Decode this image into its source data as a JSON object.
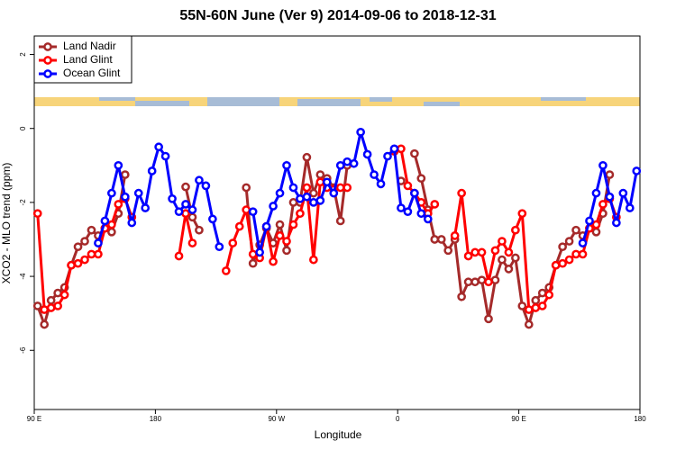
{
  "chart_data": {
    "type": "line",
    "title": "55N-60N June (Ver 9)   2014-09-06 to 2018-12-31",
    "x_label": "Longitude",
    "y_label": "XCO2 - MLO trend (ppm)",
    "xlim": [
      90,
      540
    ],
    "xticks": [
      {
        "value": 90,
        "label": "90 E"
      },
      {
        "value": 180,
        "label": "180"
      },
      {
        "value": 270,
        "label": "90 W"
      },
      {
        "value": 360,
        "label": "0"
      },
      {
        "value": 450,
        "label": "90 E"
      },
      {
        "value": 540,
        "label": "180"
      }
    ],
    "ylim": [
      -7.6,
      2.5
    ],
    "yticks": [
      -6,
      -4,
      -2,
      0,
      2
    ],
    "legend": "top-left",
    "series": [
      {
        "name": "Land Nadir",
        "color": "#a52a2a",
        "x": [
          92.5,
          97.5,
          102.5,
          107.5,
          112.5,
          117.5,
          122.5,
          127.5,
          132.5,
          137.5,
          142.5,
          147.5,
          152.5,
          157.5,
          162.5,
          202.5,
          207.5,
          212.5,
          217.5,
          247.5,
          252.5,
          257.5,
          262.5,
          267.5,
          272.5,
          277.5,
          282.5,
          287.5,
          292.5,
          297.5,
          302.5,
          307.5,
          312.5,
          317.5,
          322.5,
          327.5,
          362.5,
          367.5,
          372.5,
          377.5,
          382.5,
          387.5,
          392.5,
          397.5,
          402.5,
          407.5,
          412.5,
          417.5,
          422.5,
          427.5,
          432.5,
          437.5,
          442.5,
          447.5,
          452.5,
          457.5,
          462.5,
          467.5,
          472.5,
          477.5,
          482.5,
          487.5,
          492.5,
          497.5,
          502.5,
          507.5,
          512.5,
          517.5
        ],
        "values": [
          -4.8,
          -5.3,
          -4.65,
          -4.45,
          -4.3,
          -3.7,
          -3.2,
          -3.05,
          -2.75,
          -2.9,
          -2.7,
          -2.8,
          -2.3,
          -1.25,
          null,
          -1.58,
          -2.4,
          -2.75,
          null,
          -1.6,
          -3.65,
          -3.15,
          -2.7,
          -3.1,
          -2.6,
          -3.3,
          -2.0,
          -2.0,
          -0.78,
          -1.75,
          -1.25,
          -1.35,
          -1.6,
          -2.5,
          -1.0,
          null,
          -1.42,
          null,
          -0.68,
          -1.35,
          -2.2,
          -3.0,
          -3.0,
          -3.3,
          -3.0,
          -4.55,
          -4.15,
          -4.15,
          -4.1,
          -5.15,
          -4.1,
          -3.55,
          -3.8,
          -3.5,
          -4.8,
          -5.3,
          -4.65,
          -4.45,
          -4.3,
          -3.7,
          -3.2,
          -3.05,
          -2.75,
          -2.9,
          -2.7,
          -2.8,
          -2.3,
          -1.25
        ]
      },
      {
        "name": "Land Glint",
        "color": "#ff0000",
        "x": [
          92.5,
          97.5,
          102.5,
          107.5,
          112.5,
          117.5,
          122.5,
          127.5,
          132.5,
          137.5,
          142.5,
          147.5,
          152.5,
          157.5,
          162.5,
          167.5,
          197.5,
          202.5,
          207.5,
          212.5,
          232.5,
          237.5,
          242.5,
          247.5,
          252.5,
          257.5,
          262.5,
          267.5,
          272.5,
          277.5,
          282.5,
          287.5,
          292.5,
          297.5,
          302.5,
          307.5,
          312.5,
          317.5,
          322.5,
          327.5,
          357.5,
          362.5,
          367.5,
          372.5,
          377.5,
          382.5,
          387.5,
          392.5,
          397.5,
          402.5,
          407.5,
          412.5,
          417.5,
          422.5,
          427.5,
          432.5,
          437.5,
          442.5,
          447.5,
          452.5,
          457.5,
          462.5,
          467.5,
          472.5,
          477.5,
          482.5,
          487.5,
          492.5,
          497.5,
          502.5,
          507.5,
          512.5,
          517.5,
          522.5
        ],
        "values": [
          -2.3,
          -4.9,
          -4.85,
          -4.8,
          -4.5,
          -3.7,
          -3.65,
          -3.55,
          -3.4,
          -3.4,
          -2.7,
          -2.6,
          -2.05,
          -1.9,
          -2.4,
          null,
          -3.45,
          -2.3,
          -3.1,
          null,
          -3.85,
          -3.1,
          -2.65,
          -2.2,
          -3.4,
          -3.5,
          -2.65,
          -3.6,
          -2.9,
          -3.05,
          -2.6,
          -2.3,
          -1.6,
          -3.55,
          -1.45,
          -1.6,
          -1.65,
          -1.6,
          -1.6,
          null,
          -0.62,
          -0.55,
          -1.55,
          -1.75,
          -2.0,
          -2.3,
          -2.05,
          null,
          null,
          -2.9,
          -1.75,
          -3.45,
          -3.35,
          -3.35,
          -4.15,
          -3.3,
          -3.05,
          -3.35,
          -2.75,
          -2.3,
          -4.9,
          -4.85,
          -4.8,
          -4.5,
          -3.7,
          -3.65,
          -3.55,
          -3.4,
          -3.4,
          -2.7,
          -2.6,
          -2.05,
          -1.9,
          -2.4
        ]
      },
      {
        "name": "Ocean Glint",
        "color": "#0000ff",
        "x": [
          137.5,
          142.5,
          147.5,
          152.5,
          157.5,
          162.5,
          167.5,
          172.5,
          177.5,
          182.5,
          187.5,
          192.5,
          197.5,
          202.5,
          207.5,
          212.5,
          217.5,
          222.5,
          227.5,
          232.5,
          252.5,
          257.5,
          262.5,
          267.5,
          272.5,
          277.5,
          282.5,
          287.5,
          292.5,
          297.5,
          302.5,
          307.5,
          312.5,
          317.5,
          322.5,
          327.5,
          332.5,
          337.5,
          342.5,
          347.5,
          352.5,
          357.5,
          362.5,
          367.5,
          372.5,
          377.5,
          382.5,
          387.5,
          497.5,
          502.5,
          507.5,
          512.5,
          517.5,
          522.5,
          527.5,
          532.5,
          537.5
        ],
        "values": [
          -3.1,
          -2.5,
          -1.75,
          -1.0,
          -1.85,
          -2.55,
          -1.75,
          -2.15,
          -1.15,
          -0.5,
          -0.75,
          -1.9,
          -2.25,
          -2.05,
          -2.2,
          -1.4,
          -1.55,
          -2.45,
          -3.2,
          null,
          -2.25,
          -3.35,
          -2.65,
          -2.1,
          -1.75,
          -1.0,
          -1.6,
          -1.9,
          -1.85,
          -2.0,
          -1.95,
          -1.45,
          -1.75,
          -1.0,
          -0.9,
          -0.95,
          -0.1,
          -0.7,
          -1.25,
          -1.5,
          -0.75,
          -0.55,
          -2.15,
          -2.25,
          -1.75,
          -2.3,
          -2.45,
          null,
          -3.1,
          -2.5,
          -1.75,
          -1.0,
          -1.85,
          -2.55,
          -1.75,
          -2.15,
          -1.15
        ]
      }
    ]
  }
}
